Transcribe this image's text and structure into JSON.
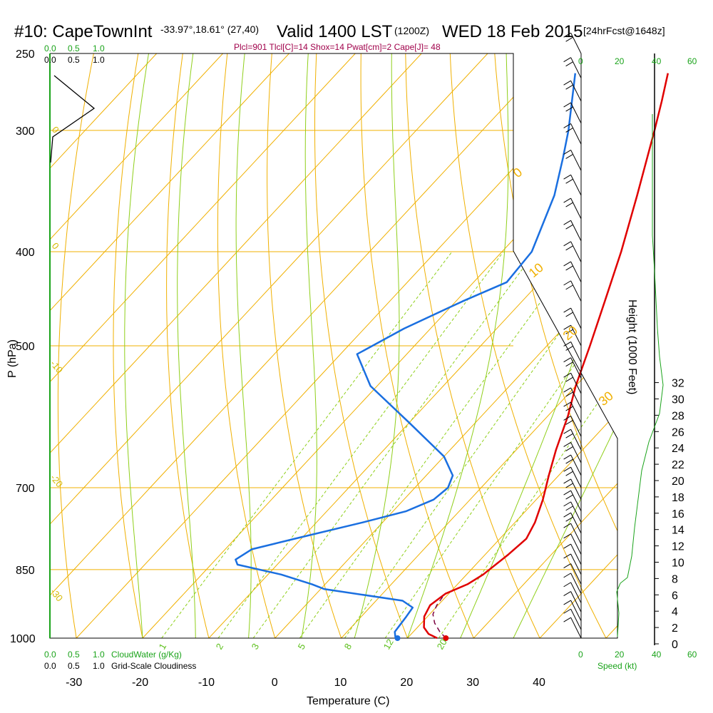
{
  "header": {
    "station": "#10: CapeTownInt",
    "coords": "-33.97°,18.61° (27,40)",
    "valid": "Valid 1400 LST",
    "utc": "(1200Z)",
    "date": "WED 18 Feb 2015",
    "forecast": "[24hrFcst@1648z]",
    "params": "Plcl=901 Tlcl[C]=14 Shox=14 Pwat[cm]=2 Cape[J]= 48"
  },
  "colors": {
    "isotherm": "#f0b000",
    "isobar": "#f0b000",
    "adiabat": "#8fcf1a",
    "mixing": "#8fcf1a",
    "temperature": "#e00000",
    "dewpoint": "#1a6fe0",
    "parcel": "#7a0040",
    "wind": "#000000",
    "cloud": "#1aa31a"
  },
  "chart_data": {
    "type": "line",
    "title": "Valid 1400 LST (1200Z) WED 18 Feb 2015",
    "xlabel": "Temperature (C)",
    "ylabel": "P (hPa)",
    "y2label": "Height (1000 Feet)",
    "x_ticks": [
      "-30",
      "-20",
      "-10",
      "0",
      "10",
      "20",
      "30",
      "40"
    ],
    "pressure_ticks": [
      "250",
      "300",
      "400",
      "500",
      "700",
      "850",
      "1000"
    ],
    "height_ticks": [
      "0",
      "2",
      "4",
      "6",
      "8",
      "10",
      "12",
      "14",
      "16",
      "18",
      "20",
      "22",
      "24",
      "26",
      "28",
      "30",
      "32"
    ],
    "xlim": [
      -34,
      36
    ],
    "ylim_hpa": [
      1000,
      250
    ],
    "series": [
      {
        "name": "Temperature",
        "points": [
          {
            "p": 1000,
            "t": 24.5
          },
          {
            "p": 990,
            "t": 22.6
          },
          {
            "p": 975,
            "t": 21.0
          },
          {
            "p": 950,
            "t": 19.5
          },
          {
            "p": 925,
            "t": 18.8
          },
          {
            "p": 900,
            "t": 19.5
          },
          {
            "p": 880,
            "t": 21.5
          },
          {
            "p": 860,
            "t": 22.5
          },
          {
            "p": 820,
            "t": 23.5
          },
          {
            "p": 790,
            "t": 24.0
          },
          {
            "p": 760,
            "t": 23.0
          },
          {
            "p": 720,
            "t": 21.0
          },
          {
            "p": 680,
            "t": 18.5
          },
          {
            "p": 640,
            "t": 16.0
          },
          {
            "p": 590,
            "t": 13.0
          },
          {
            "p": 550,
            "t": 10.0
          },
          {
            "p": 500,
            "t": 6.5
          },
          {
            "p": 450,
            "t": 2.5
          },
          {
            "p": 400,
            "t": -2.0
          },
          {
            "p": 350,
            "t": -7.5
          },
          {
            "p": 300,
            "t": -14.0
          },
          {
            "p": 280,
            "t": -17.0
          },
          {
            "p": 262,
            "t": -20.0
          }
        ]
      },
      {
        "name": "Dewpoint",
        "points": [
          {
            "p": 1000,
            "t": 18.2
          },
          {
            "p": 985,
            "t": 17.2
          },
          {
            "p": 950,
            "t": 16.8
          },
          {
            "p": 930,
            "t": 16.5
          },
          {
            "p": 915,
            "t": 14.0
          },
          {
            "p": 890,
            "t": 0.5
          },
          {
            "p": 880,
            "t": -2.0
          },
          {
            "p": 860,
            "t": -8.0
          },
          {
            "p": 840,
            "t": -16.0
          },
          {
            "p": 830,
            "t": -17.0
          },
          {
            "p": 810,
            "t": -16.0
          },
          {
            "p": 790,
            "t": -11.0
          },
          {
            "p": 760,
            "t": -3.0
          },
          {
            "p": 740,
            "t": 2.0
          },
          {
            "p": 720,
            "t": 4.5
          },
          {
            "p": 700,
            "t": 5.0
          },
          {
            "p": 680,
            "t": 4.0
          },
          {
            "p": 650,
            "t": 0.0
          },
          {
            "p": 600,
            "t": -10.0
          },
          {
            "p": 550,
            "t": -21.0
          },
          {
            "p": 510,
            "t": -27.5
          },
          {
            "p": 480,
            "t": -24.0
          },
          {
            "p": 450,
            "t": -19.0
          },
          {
            "p": 430,
            "t": -15.0
          },
          {
            "p": 400,
            "t": -15.5
          },
          {
            "p": 350,
            "t": -20.0
          },
          {
            "p": 320,
            "t": -24.0
          },
          {
            "p": 300,
            "t": -27.0
          },
          {
            "p": 262,
            "t": -34.0
          }
        ]
      },
      {
        "name": "Parcel",
        "points": [
          {
            "p": 1000,
            "t": 25.8
          },
          {
            "p": 985,
            "t": 24.0
          },
          {
            "p": 965,
            "t": 22.0
          },
          {
            "p": 945,
            "t": 20.5
          },
          {
            "p": 925,
            "t": 19.8
          },
          {
            "p": 905,
            "t": 19.5
          }
        ]
      }
    ],
    "surface_markers": {
      "temperature": 25.8,
      "dewpoint": 18.5
    },
    "isotherms": [
      -100,
      -90,
      -80,
      -70,
      -60,
      -50,
      -40,
      -30,
      -20,
      -10,
      0,
      10,
      20,
      30,
      40,
      50
    ],
    "isotherm_labels": [
      "-30",
      "-20",
      "-10",
      "0",
      "10",
      "20",
      "30"
    ],
    "dry_adiabat_labels": [
      "0",
      "10",
      "20",
      "30"
    ],
    "mixing_ratio_labels": [
      "1",
      "2",
      "3",
      "5",
      "8",
      "12",
      "20"
    ],
    "wind_barb_pressures": [
      250,
      265,
      280,
      295,
      310,
      330,
      350,
      370,
      390,
      410,
      430,
      450,
      480,
      500,
      520,
      540,
      560,
      580,
      600,
      620,
      640,
      660,
      680,
      700,
      720,
      740,
      760,
      780,
      800,
      820,
      840,
      860,
      880,
      900,
      920,
      940,
      960,
      980,
      1000
    ],
    "wind_speed_ticks": [
      "0",
      "20",
      "40",
      "60"
    ],
    "wind_speed_label": "Speed (kt)",
    "cloud_water_label": "CloudWater (g/Kg)",
    "cloud_water_ticks": [
      "0.0",
      "0.5",
      "1.0"
    ],
    "cloudiness_label": "Grid-Scale Cloudiness",
    "cloudiness_ticks": [
      "0.0",
      "0.5",
      "1.0"
    ]
  }
}
